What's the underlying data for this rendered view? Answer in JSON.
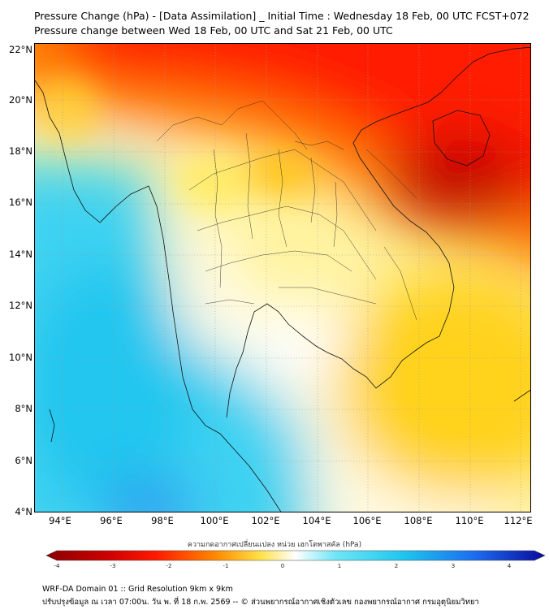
{
  "title": {
    "line1": "Pressure Change (hPa) - [Data Assimilation] _ Initial Time : Wednesday 18 Feb, 00 UTC FCST+072",
    "line2": "Pressure change between Wed 18 Feb, 00 UTC and Sat 21 Feb, 00 UTC"
  },
  "axes": {
    "lat_labels": [
      "22°N",
      "20°N",
      "18°N",
      "16°N",
      "14°N",
      "12°N",
      "10°N",
      "8°N",
      "6°N",
      "4°N"
    ],
    "lon_labels": [
      "94°E",
      "96°E",
      "98°E",
      "100°E",
      "102°E",
      "104°E",
      "106°E",
      "108°E",
      "110°E",
      "112°E"
    ],
    "lat_range": [
      4,
      22.1
    ],
    "lon_range": [
      93,
      112.5
    ]
  },
  "colorbar": {
    "title": "ความกดอากาศเปลี่ยนแปลง หน่วย เฮกโตพาสคัล (hPa)",
    "ticks": [
      "-4",
      "-3",
      "-2",
      "-1",
      "0",
      "1",
      "2",
      "3",
      "4"
    ],
    "colors": {
      "neg_strong": "#8b0000",
      "neg": "#ff1a00",
      "neg_mid": "#ffa500",
      "neg_light": "#ffe24a",
      "zero": "#ffffff",
      "pos_light": "#6fe6f6",
      "pos": "#1ec4ee",
      "pos_mid": "#1c6cf0",
      "pos_strong": "#0a0a9a"
    }
  },
  "footer": {
    "line1": "WRF-DA Domain 01 :: Grid Resolution 9km x 9km",
    "line2": "ปรับปรุงข้อมูล ณ เวลา 07:00น. วัน พ. ที่ 18 ก.พ. 2569 -- © ส่วนพยากรณ์อากาศเชิงตัวเลข กองพยากรณ์อากาศ กรมอุตุนิยมวิทยา"
  }
}
